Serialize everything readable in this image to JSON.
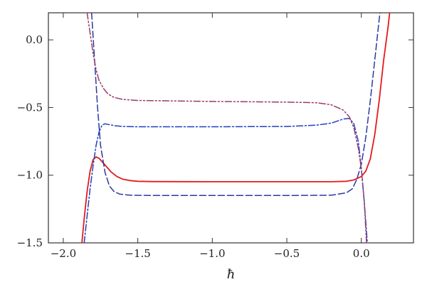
{
  "chart_data": {
    "type": "line",
    "title": "",
    "xlabel": "ħ",
    "ylabel": "",
    "xlim": [
      -2.1,
      0.35
    ],
    "ylim": [
      -1.5,
      0.2
    ],
    "x_ticks": [
      -2.0,
      -1.5,
      -1.0,
      -0.5,
      0.0
    ],
    "x_tick_labels": [
      "−2.0",
      "−1.5",
      "−1.0",
      "−0.5",
      "0.0"
    ],
    "y_ticks": [
      0.0,
      -0.5,
      -1.0,
      -1.5
    ],
    "y_tick_labels": [
      "0.0",
      "−0.5",
      "−1.0",
      "−1.5"
    ],
    "grid": false,
    "series": [
      {
        "color": "#e41a1c",
        "dash": "solid",
        "points": [
          [
            -1.875,
            -1.5
          ],
          [
            -1.86,
            -1.32
          ],
          [
            -1.84,
            -1.12
          ],
          [
            -1.82,
            -0.97
          ],
          [
            -1.8,
            -0.885
          ],
          [
            -1.78,
            -0.865
          ],
          [
            -1.76,
            -0.875
          ],
          [
            -1.72,
            -0.925
          ],
          [
            -1.68,
            -0.975
          ],
          [
            -1.64,
            -1.01
          ],
          [
            -1.6,
            -1.03
          ],
          [
            -1.55,
            -1.04
          ],
          [
            -1.5,
            -1.045
          ],
          [
            -1.4,
            -1.047
          ],
          [
            -1.0,
            -1.048
          ],
          [
            -0.5,
            -1.048
          ],
          [
            -0.2,
            -1.048
          ],
          [
            -0.1,
            -1.045
          ],
          [
            -0.05,
            -1.035
          ],
          [
            0.0,
            -1.01
          ],
          [
            0.03,
            -0.97
          ],
          [
            0.06,
            -0.88
          ],
          [
            0.09,
            -0.7
          ],
          [
            0.12,
            -0.45
          ],
          [
            0.15,
            -0.15
          ],
          [
            0.18,
            0.1
          ],
          [
            0.19,
            0.2
          ]
        ]
      },
      {
        "color": "#1f3fbf",
        "dash": "dashdot",
        "points": [
          [
            -1.86,
            -1.5
          ],
          [
            -1.84,
            -1.3
          ],
          [
            -1.82,
            -1.1
          ],
          [
            -1.8,
            -0.93
          ],
          [
            -1.78,
            -0.78
          ],
          [
            -1.76,
            -0.68
          ],
          [
            -1.74,
            -0.63
          ],
          [
            -1.72,
            -0.62
          ],
          [
            -1.7,
            -0.625
          ],
          [
            -1.65,
            -0.635
          ],
          [
            -1.6,
            -0.64
          ],
          [
            -1.5,
            -0.642
          ],
          [
            -1.0,
            -0.642
          ],
          [
            -0.5,
            -0.64
          ],
          [
            -0.3,
            -0.63
          ],
          [
            -0.2,
            -0.615
          ],
          [
            -0.12,
            -0.585
          ],
          [
            -0.08,
            -0.58
          ],
          [
            -0.05,
            -0.62
          ],
          [
            -0.02,
            -0.75
          ],
          [
            0.0,
            -0.95
          ],
          [
            0.02,
            -1.2
          ],
          [
            0.04,
            -1.5
          ]
        ]
      },
      {
        "color": "#2a3a9e",
        "dash": "dashed",
        "points": [
          [
            -1.81,
            0.2
          ],
          [
            -1.79,
            -0.15
          ],
          [
            -1.77,
            -0.5
          ],
          [
            -1.75,
            -0.78
          ],
          [
            -1.72,
            -0.98
          ],
          [
            -1.69,
            -1.08
          ],
          [
            -1.66,
            -1.12
          ],
          [
            -1.62,
            -1.14
          ],
          [
            -1.55,
            -1.148
          ],
          [
            -1.4,
            -1.15
          ],
          [
            -1.0,
            -1.15
          ],
          [
            -0.5,
            -1.15
          ],
          [
            -0.2,
            -1.148
          ],
          [
            -0.1,
            -1.13
          ],
          [
            -0.06,
            -1.1
          ],
          [
            -0.03,
            -1.03
          ],
          [
            0.0,
            -0.92
          ],
          [
            0.03,
            -0.72
          ],
          [
            0.06,
            -0.45
          ],
          [
            0.09,
            -0.15
          ],
          [
            0.11,
            0.05
          ],
          [
            0.125,
            0.2
          ]
        ]
      },
      {
        "color": "#9b3a6a",
        "dash": "dashdotdot",
        "points": [
          [
            -1.84,
            0.2
          ],
          [
            -1.82,
            0.05
          ],
          [
            -1.8,
            -0.1
          ],
          [
            -1.78,
            -0.22
          ],
          [
            -1.76,
            -0.3
          ],
          [
            -1.73,
            -0.36
          ],
          [
            -1.7,
            -0.4
          ],
          [
            -1.66,
            -0.425
          ],
          [
            -1.6,
            -0.44
          ],
          [
            -1.5,
            -0.448
          ],
          [
            -1.0,
            -0.455
          ],
          [
            -0.5,
            -0.46
          ],
          [
            -0.3,
            -0.465
          ],
          [
            -0.2,
            -0.48
          ],
          [
            -0.12,
            -0.52
          ],
          [
            -0.08,
            -0.57
          ],
          [
            -0.05,
            -0.65
          ],
          [
            -0.02,
            -0.8
          ],
          [
            0.0,
            -0.95
          ],
          [
            0.02,
            -1.2
          ],
          [
            0.035,
            -1.5
          ]
        ]
      }
    ]
  }
}
